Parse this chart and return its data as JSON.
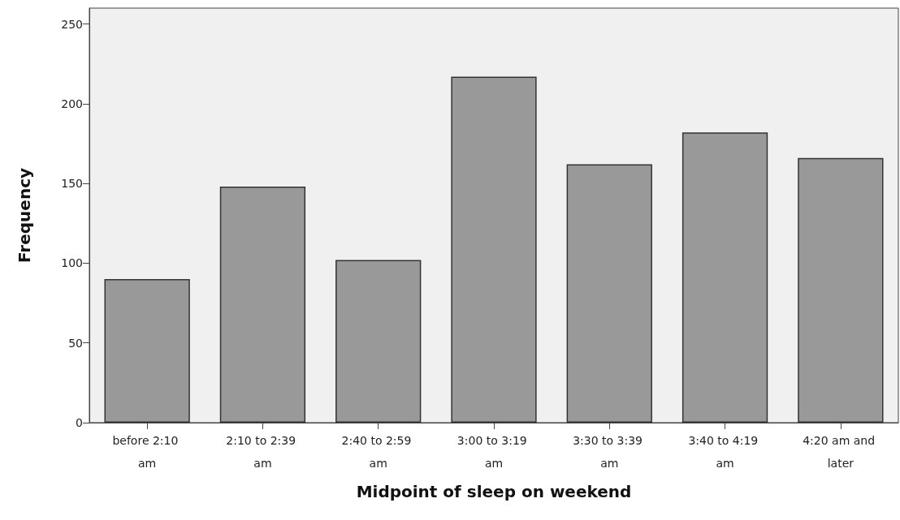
{
  "chart_data": {
    "type": "bar",
    "xlabel": "Midpoint of sleep on weekend",
    "ylabel": "Frequency",
    "categories": [
      "before 2:10 am",
      "2:10 to 2:39 am",
      "2:40 to 2:59 am",
      "3:00 to 3:19 am",
      "3:30 to 3:39 am",
      "3:40 to 4:19 am",
      "4:20 am and later"
    ],
    "values": [
      90,
      148,
      102,
      217,
      162,
      182,
      166
    ],
    "color": "#999999",
    "ylim": [
      0,
      260
    ],
    "yticks": [
      0,
      50,
      100,
      150,
      200,
      250
    ],
    "grid": false
  }
}
